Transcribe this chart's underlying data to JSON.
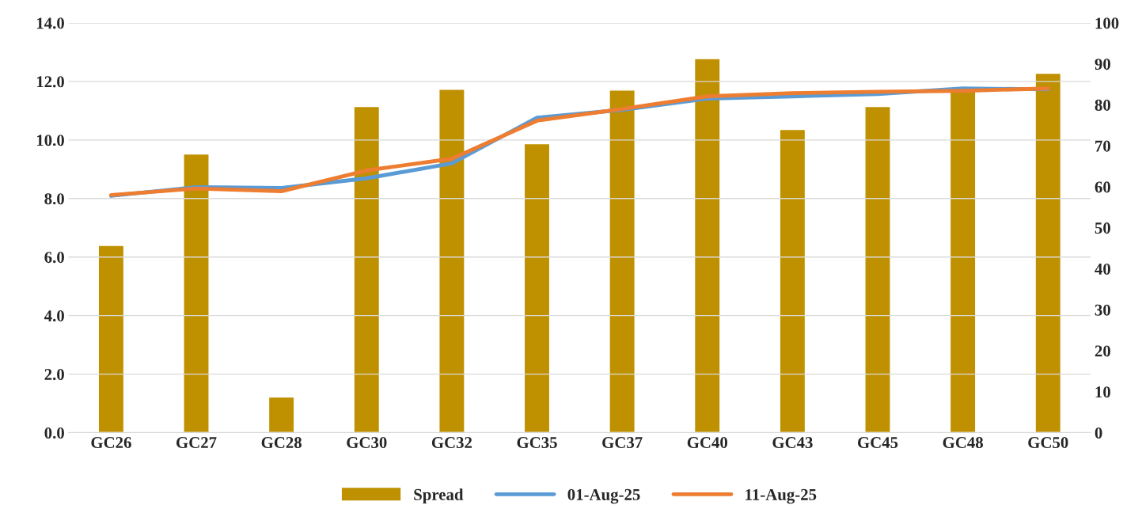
{
  "chart_data": {
    "type": "bar",
    "categories": [
      "GC26",
      "GC27",
      "GC28",
      "GC30",
      "GC32",
      "GC35",
      "GC37",
      "GC40",
      "GC43",
      "GC45",
      "GC48",
      "GC50"
    ],
    "series": [
      {
        "name": "Spread",
        "axis": "y2",
        "color": "#bf9000",
        "values": [
          45.7,
          68.0,
          8.7,
          79.6,
          83.8,
          70.5,
          83.6,
          91.3,
          74.0,
          79.6,
          83.8,
          87.7
        ]
      },
      {
        "name": "01-Aug-25",
        "type": "line",
        "color": "#5b9bd5",
        "values": [
          8.09,
          8.39,
          8.36,
          8.69,
          9.2,
          10.76,
          11.03,
          11.41,
          11.49,
          11.57,
          11.76,
          11.73
        ]
      },
      {
        "name": "11-Aug-25",
        "type": "line",
        "color": "#ed7d31",
        "values": [
          8.12,
          8.34,
          8.25,
          8.96,
          9.36,
          10.66,
          11.06,
          11.49,
          11.6,
          11.65,
          11.68,
          11.76
        ]
      }
    ],
    "ylim": [
      0,
      14
    ],
    "yticks": [
      {
        "value": 0,
        "label": "0.0"
      },
      {
        "value": 2,
        "label": "2.0"
      },
      {
        "value": 4,
        "label": "4.0"
      },
      {
        "value": 6,
        "label": "6.0"
      },
      {
        "value": 8,
        "label": "8.0"
      },
      {
        "value": 10,
        "label": "10.0"
      },
      {
        "value": 12,
        "label": "12.0"
      },
      {
        "value": 14,
        "label": "14.0"
      }
    ],
    "y2lim": [
      0,
      100
    ],
    "y2ticks": [
      0,
      10,
      20,
      30,
      40,
      50,
      60,
      70,
      80,
      90,
      100
    ],
    "grid": "y",
    "legend": "bottom"
  }
}
